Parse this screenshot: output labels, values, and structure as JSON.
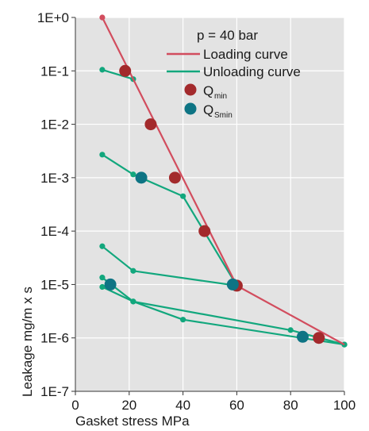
{
  "chart_data": {
    "type": "line",
    "y_scale": "log",
    "xlim": [
      0,
      100
    ],
    "ylim": [
      1e-07,
      1
    ],
    "grid": true,
    "legend_position": "top-right",
    "legend_title": "p = 40 bar",
    "xlabel": "Gasket stress  MPa",
    "ylabel": "Leakage  mg/m x s",
    "x_ticks": [
      {
        "value": 0,
        "label": "0"
      },
      {
        "value": 20,
        "label": "20"
      },
      {
        "value": 40,
        "label": "40"
      },
      {
        "value": 60,
        "label": "60"
      },
      {
        "value": 80,
        "label": "80"
      },
      {
        "value": 100,
        "label": "100"
      }
    ],
    "y_ticks": [
      {
        "value": 1,
        "label": "1E+0"
      },
      {
        "value": 0.1,
        "label": "1E-1"
      },
      {
        "value": 0.01,
        "label": "1E-2"
      },
      {
        "value": 0.001,
        "label": "1E-3"
      },
      {
        "value": 0.0001,
        "label": "1E-4"
      },
      {
        "value": 1e-05,
        "label": "1E-5"
      },
      {
        "value": 1e-06,
        "label": "1E-6"
      },
      {
        "value": 1e-07,
        "label": "1E-7"
      }
    ],
    "legend": [
      {
        "kind": "line",
        "label": "Loading curve",
        "color": "#d24d5e"
      },
      {
        "kind": "line",
        "label": "Unloading curve",
        "color": "#12a77d"
      },
      {
        "kind": "marker",
        "label": "Q",
        "sub": "min",
        "color": "#a32a2c"
      },
      {
        "kind": "marker",
        "label": "Q",
        "sub": "Smin",
        "color": "#0e7484"
      }
    ],
    "loading_curve": {
      "color": "#d24d5e",
      "points": [
        [
          10,
          1
        ],
        [
          60,
          9.5e-06
        ],
        [
          100,
          7.5e-07
        ]
      ]
    },
    "unloading_curves": {
      "color": "#12a77d",
      "series": [
        [
          [
            10,
            0.105
          ],
          [
            21.5,
            0.07
          ]
        ],
        [
          [
            10,
            0.0027
          ],
          [
            21.5,
            0.00115
          ],
          [
            40,
            0.00045
          ],
          [
            60,
            9.5e-06
          ]
        ],
        [
          [
            10,
            5.2e-05
          ],
          [
            21.5,
            1.8e-05
          ],
          [
            60,
            9.5e-06
          ]
        ],
        [
          [
            10,
            1.35e-05
          ],
          [
            21.5,
            4.8e-06
          ],
          [
            80,
            1.4e-06
          ],
          [
            100,
            7.5e-07
          ]
        ],
        [
          [
            10,
            9e-06
          ],
          [
            21.5,
            4.8e-06
          ],
          [
            40,
            2.2e-06
          ],
          [
            100,
            7.5e-07
          ]
        ]
      ]
    },
    "q_min": {
      "color": "#a32a2c",
      "points": [
        [
          18.5,
          0.1
        ],
        [
          28,
          0.01
        ],
        [
          37,
          0.001
        ],
        [
          48,
          0.0001
        ],
        [
          60,
          9.5e-06
        ],
        [
          90.5,
          1e-06
        ]
      ]
    },
    "q_smin": {
      "color": "#0e7484",
      "points": [
        [
          13,
          1e-05
        ],
        [
          24.5,
          0.001
        ],
        [
          58.5,
          1e-05
        ],
        [
          84.5,
          1.05e-06
        ]
      ]
    }
  }
}
